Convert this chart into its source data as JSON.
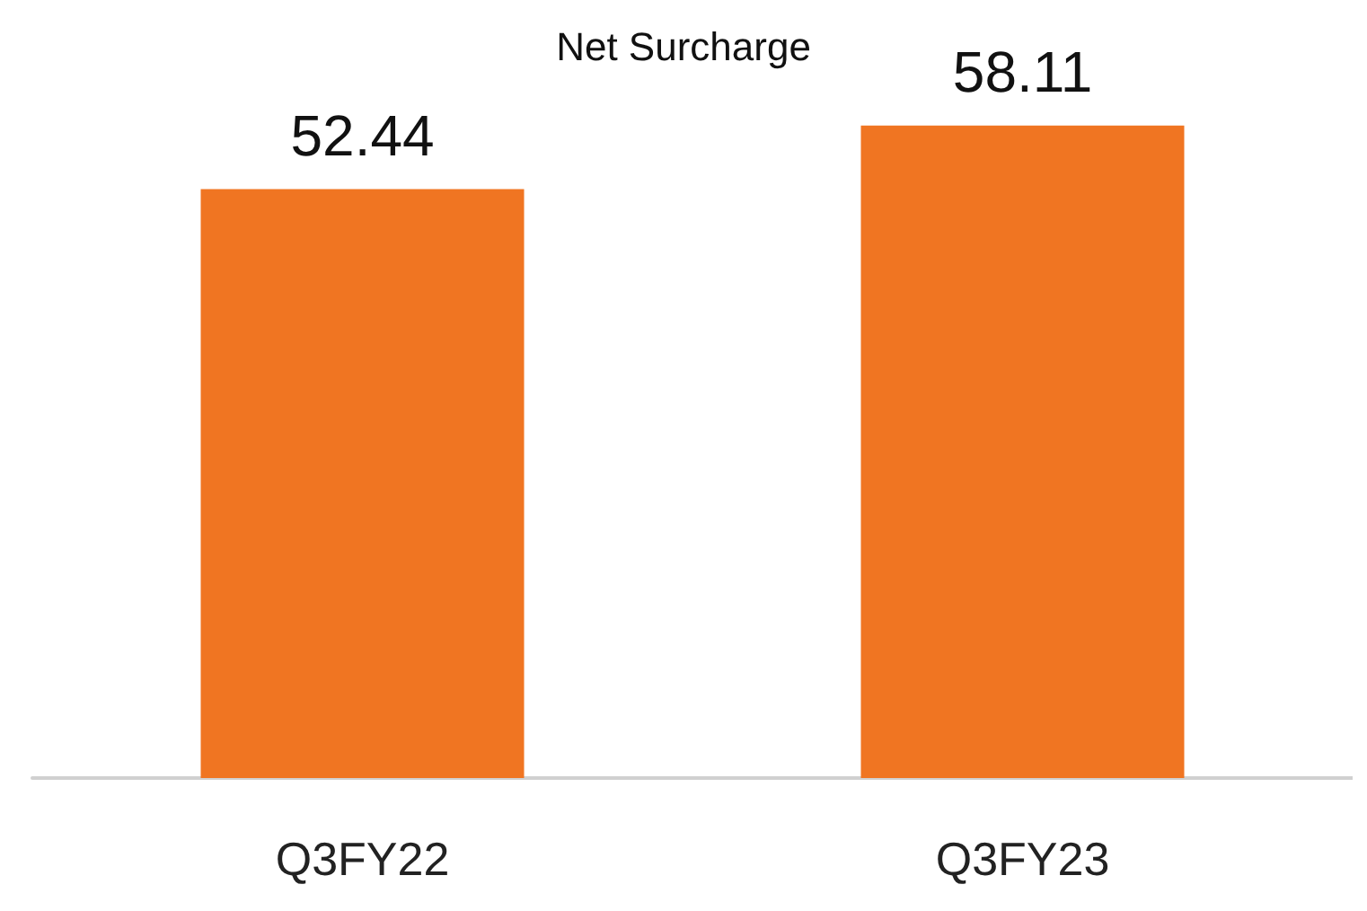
{
  "chart_data": {
    "type": "bar",
    "title": "Net Surcharge",
    "categories": [
      "Q3FY22",
      "Q3FY23"
    ],
    "values": [
      52.44,
      58.11
    ],
    "color": "#f07522",
    "data_labels": true,
    "grid": false
  }
}
